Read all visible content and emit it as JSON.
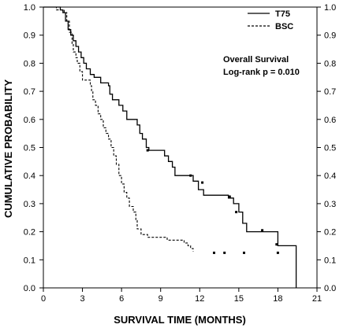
{
  "chart_data": {
    "type": "line",
    "subtype": "kaplan-meier step",
    "xlabel": "SURVIVAL TIME (MONTHS)",
    "ylabel": "CUMULATIVE PROBABILITY",
    "xlim": [
      0,
      21
    ],
    "ylim": [
      0.0,
      1.0
    ],
    "x_ticks": [
      "0",
      "3",
      "6",
      "9",
      "12",
      "15",
      "18",
      "21"
    ],
    "y_ticks": [
      "0.0",
      "0.1",
      "0.2",
      "0.3",
      "0.4",
      "0.5",
      "0.6",
      "0.7",
      "0.8",
      "0.9",
      "1.0"
    ],
    "y_axis_right_mirror": true,
    "grid": false,
    "legend_position": "top-right",
    "annotation": [
      "Overall Survival",
      "Log-rank  p = 0.010"
    ],
    "series": [
      {
        "name": "T75",
        "line_style": "solid",
        "steps": [
          [
            0,
            1.0
          ],
          [
            1.3,
            0.99
          ],
          [
            1.5,
            0.98
          ],
          [
            1.7,
            0.95
          ],
          [
            1.9,
            0.92
          ],
          [
            2.1,
            0.9
          ],
          [
            2.3,
            0.88
          ],
          [
            2.5,
            0.86
          ],
          [
            2.7,
            0.84
          ],
          [
            2.9,
            0.82
          ],
          [
            3.1,
            0.8
          ],
          [
            3.3,
            0.78
          ],
          [
            3.6,
            0.76
          ],
          [
            3.9,
            0.75
          ],
          [
            4.4,
            0.73
          ],
          [
            5.0,
            0.72
          ],
          [
            5.1,
            0.69
          ],
          [
            5.3,
            0.67
          ],
          [
            5.8,
            0.65
          ],
          [
            6.1,
            0.63
          ],
          [
            6.4,
            0.6
          ],
          [
            7.2,
            0.58
          ],
          [
            7.4,
            0.55
          ],
          [
            7.6,
            0.53
          ],
          [
            7.9,
            0.5
          ],
          [
            8.1,
            0.49
          ],
          [
            9.3,
            0.47
          ],
          [
            9.6,
            0.45
          ],
          [
            9.9,
            0.43
          ],
          [
            10.1,
            0.4
          ],
          [
            11.5,
            0.38
          ],
          [
            11.9,
            0.35
          ],
          [
            12.3,
            0.33
          ],
          [
            14.2,
            0.32
          ],
          [
            14.6,
            0.3
          ],
          [
            15.0,
            0.27
          ],
          [
            15.3,
            0.23
          ],
          [
            15.6,
            0.2
          ],
          [
            18.0,
            0.15
          ],
          [
            19.4,
            0.0
          ]
        ],
        "end_x": 19.4,
        "censored": [
          [
            8.0,
            0.49
          ],
          [
            11.3,
            0.4
          ],
          [
            12.2,
            0.375
          ],
          [
            14.3,
            0.325
          ],
          [
            14.8,
            0.27
          ],
          [
            16.8,
            0.205
          ],
          [
            17.9,
            0.155
          ]
        ]
      },
      {
        "name": "BSC",
        "line_style": "dashed",
        "steps": [
          [
            0,
            1.0
          ],
          [
            1.0,
            0.99
          ],
          [
            1.6,
            0.98
          ],
          [
            1.8,
            0.95
          ],
          [
            2.0,
            0.91
          ],
          [
            2.2,
            0.87
          ],
          [
            2.3,
            0.84
          ],
          [
            2.5,
            0.82
          ],
          [
            2.6,
            0.8
          ],
          [
            2.8,
            0.77
          ],
          [
            3.0,
            0.74
          ],
          [
            3.6,
            0.72
          ],
          [
            3.7,
            0.7
          ],
          [
            3.8,
            0.67
          ],
          [
            4.0,
            0.65
          ],
          [
            4.2,
            0.62
          ],
          [
            4.4,
            0.6
          ],
          [
            4.6,
            0.57
          ],
          [
            4.8,
            0.55
          ],
          [
            5.0,
            0.53
          ],
          [
            5.2,
            0.5
          ],
          [
            5.4,
            0.47
          ],
          [
            5.6,
            0.44
          ],
          [
            5.8,
            0.4
          ],
          [
            6.0,
            0.37
          ],
          [
            6.2,
            0.34
          ],
          [
            6.4,
            0.32
          ],
          [
            6.6,
            0.29
          ],
          [
            6.9,
            0.27
          ],
          [
            7.1,
            0.24
          ],
          [
            7.2,
            0.21
          ],
          [
            7.5,
            0.19
          ],
          [
            8.0,
            0.18
          ],
          [
            9.5,
            0.17
          ],
          [
            10.8,
            0.16
          ],
          [
            11.1,
            0.15
          ],
          [
            11.3,
            0.14
          ],
          [
            11.5,
            0.13
          ]
        ],
        "end_x": 11.5,
        "censored": [
          [
            13.1,
            0.125
          ],
          [
            13.9,
            0.125
          ],
          [
            15.4,
            0.125
          ],
          [
            18.0,
            0.125
          ]
        ]
      }
    ]
  }
}
